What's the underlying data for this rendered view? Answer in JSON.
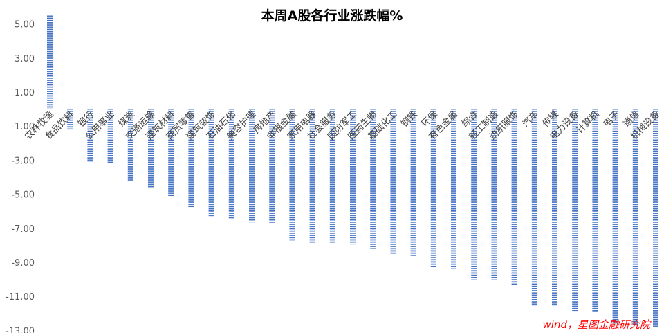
{
  "chart_data": {
    "type": "bar",
    "title": "本周A股各行业涨跌幅%",
    "xlabel": "",
    "ylabel": "",
    "ylim": [
      -13,
      5.5
    ],
    "yticks": [
      5,
      3,
      1,
      -1,
      -3,
      -5,
      -7,
      -9,
      -11,
      -13
    ],
    "ytick_labels": [
      "5.00",
      "3.00",
      "1.00",
      "-1.00",
      "-3.00",
      "-5.00",
      "-7.00",
      "-9.00",
      "-11.00",
      "-13.00"
    ],
    "grid": false,
    "legend": "none",
    "bar_color": "#4472c4",
    "bar_pattern": "horizontal-stripes",
    "categories": [
      "农林牧渔",
      "食品饮料",
      "银行",
      "公用事业",
      "煤炭",
      "交通运输",
      "建筑材料",
      "商贸零售",
      "建筑装饰",
      "石油石化",
      "美容护理",
      "房地产",
      "非银金融",
      "家用电器",
      "社会服务",
      "国防军工",
      "医药生物",
      "基础化工",
      "钢铁",
      "环保",
      "有色金属",
      "综合",
      "轻工制造",
      "纺织服饰",
      "汽车",
      "传媒",
      "电力设备",
      "计算机",
      "电子",
      "通信",
      "机械设备"
    ],
    "values": [
      5.5,
      -1.2,
      -3.1,
      -3.2,
      -4.2,
      -4.6,
      -5.1,
      -5.75,
      -6.3,
      -6.45,
      -6.65,
      -6.75,
      -7.75,
      -7.9,
      -7.9,
      -7.95,
      -8.2,
      -8.55,
      -8.65,
      -9.3,
      -9.35,
      -10.0,
      -10.0,
      -10.35,
      -11.55,
      -11.55,
      -11.85,
      -11.9,
      -12.6,
      -12.7,
      -12.8
    ]
  },
  "source_note": "wind，星图金融研究院"
}
